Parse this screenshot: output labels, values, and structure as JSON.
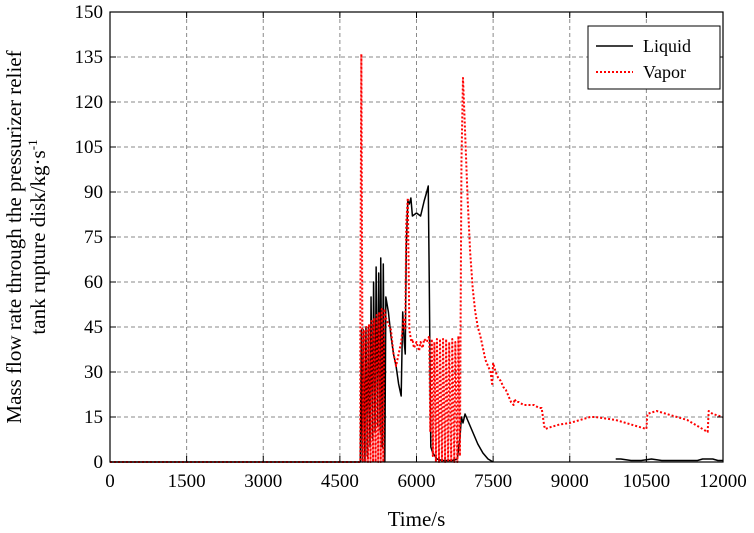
{
  "chart_data": {
    "type": "line",
    "xlabel": "Time/s",
    "ylabel_line1": "Mass flow rate through the pressurizer relief",
    "ylabel_line2_main": "tank rupture disk/kg·s",
    "ylabel_line2_sup": "-1",
    "xlim": [
      0,
      12000
    ],
    "ylim": [
      0,
      150
    ],
    "xticks": [
      0,
      1500,
      3000,
      4500,
      6000,
      7500,
      9000,
      10500,
      12000
    ],
    "yticks": [
      0,
      15,
      30,
      45,
      60,
      75,
      90,
      105,
      120,
      135,
      150
    ],
    "grid": true,
    "legend_position": "top-right",
    "colors": {
      "liquid": "#000000",
      "vapor": "#ff0000"
    },
    "series": [
      {
        "name": "Liquid",
        "style": "solid",
        "points": [
          [
            0,
            0
          ],
          [
            4900,
            0
          ],
          [
            4920,
            44
          ],
          [
            4940,
            0
          ],
          [
            4960,
            44
          ],
          [
            4990,
            0
          ],
          [
            5010,
            45
          ],
          [
            5040,
            2
          ],
          [
            5060,
            45
          ],
          [
            5090,
            5
          ],
          [
            5110,
            55
          ],
          [
            5140,
            8
          ],
          [
            5160,
            60
          ],
          [
            5190,
            10
          ],
          [
            5210,
            65
          ],
          [
            5240,
            12
          ],
          [
            5260,
            63
          ],
          [
            5290,
            10
          ],
          [
            5300,
            68
          ],
          [
            5330,
            5
          ],
          [
            5350,
            66
          ],
          [
            5380,
            0
          ],
          [
            5400,
            55
          ],
          [
            5450,
            50
          ],
          [
            5500,
            42
          ],
          [
            5550,
            36
          ],
          [
            5600,
            32
          ],
          [
            5650,
            26
          ],
          [
            5700,
            22
          ],
          [
            5730,
            50
          ],
          [
            5760,
            40
          ],
          [
            5780,
            36
          ],
          [
            5800,
            72
          ],
          [
            5830,
            87
          ],
          [
            5860,
            86
          ],
          [
            5890,
            88
          ],
          [
            5920,
            82
          ],
          [
            6000,
            83
          ],
          [
            6080,
            82
          ],
          [
            6150,
            87
          ],
          [
            6200,
            90
          ],
          [
            6230,
            92
          ],
          [
            6250,
            60
          ],
          [
            6280,
            5
          ],
          [
            6320,
            3
          ],
          [
            6400,
            1
          ],
          [
            6500,
            0.5
          ],
          [
            6700,
            0.5
          ],
          [
            6800,
            1
          ],
          [
            6850,
            8
          ],
          [
            6880,
            15
          ],
          [
            6910,
            13
          ],
          [
            6950,
            16
          ],
          [
            7000,
            14
          ],
          [
            7100,
            10
          ],
          [
            7200,
            6
          ],
          [
            7300,
            3
          ],
          [
            7400,
            1
          ],
          [
            7500,
            0
          ],
          [
            7500,
            null
          ],
          [
            9900,
            1
          ],
          [
            10000,
            1
          ],
          [
            10200,
            0.5
          ],
          [
            10400,
            0.5
          ],
          [
            10600,
            1
          ],
          [
            10800,
            0.5
          ],
          [
            11000,
            0.5
          ],
          [
            11400,
            0.5
          ],
          [
            11500,
            0.5
          ],
          [
            11600,
            1
          ],
          [
            11700,
            1
          ],
          [
            11800,
            1
          ],
          [
            11900,
            0.5
          ],
          [
            12000,
            0.5
          ]
        ]
      },
      {
        "name": "Vapor",
        "style": "dotted",
        "points": [
          [
            0,
            0
          ],
          [
            4900,
            0
          ],
          [
            4900,
            45
          ],
          [
            4920,
            136
          ],
          [
            4940,
            43
          ],
          [
            4950,
            0
          ],
          [
            4970,
            44
          ],
          [
            5000,
            0
          ],
          [
            5020,
            45
          ],
          [
            5050,
            0
          ],
          [
            5070,
            46
          ],
          [
            5100,
            0
          ],
          [
            5120,
            47
          ],
          [
            5150,
            0
          ],
          [
            5170,
            48
          ],
          [
            5200,
            0
          ],
          [
            5220,
            49
          ],
          [
            5250,
            0
          ],
          [
            5270,
            50
          ],
          [
            5300,
            0
          ],
          [
            5320,
            51
          ],
          [
            5350,
            0
          ],
          [
            5370,
            51
          ],
          [
            5400,
            48
          ],
          [
            5450,
            46
          ],
          [
            5500,
            44
          ],
          [
            5550,
            36
          ],
          [
            5600,
            32
          ],
          [
            5650,
            36
          ],
          [
            5700,
            40
          ],
          [
            5750,
            48
          ],
          [
            5780,
            44
          ],
          [
            5800,
            80
          ],
          [
            5830,
            88
          ],
          [
            5860,
            44
          ],
          [
            5880,
            42
          ],
          [
            5900,
            40
          ],
          [
            5920,
            41
          ],
          [
            5950,
            38
          ],
          [
            6000,
            40
          ],
          [
            6050,
            37
          ],
          [
            6080,
            40
          ],
          [
            6120,
            38
          ],
          [
            6150,
            41
          ],
          [
            6200,
            40
          ],
          [
            6250,
            42
          ],
          [
            6270,
            10
          ],
          [
            6300,
            41
          ],
          [
            6320,
            2
          ],
          [
            6350,
            40
          ],
          [
            6380,
            0
          ],
          [
            6400,
            41
          ],
          [
            6440,
            0
          ],
          [
            6460,
            41
          ],
          [
            6500,
            0
          ],
          [
            6520,
            41
          ],
          [
            6560,
            0
          ],
          [
            6580,
            41
          ],
          [
            6620,
            0
          ],
          [
            6640,
            40
          ],
          [
            6680,
            0
          ],
          [
            6700,
            41
          ],
          [
            6740,
            0
          ],
          [
            6760,
            40
          ],
          [
            6800,
            0
          ],
          [
            6820,
            42
          ],
          [
            6850,
            2
          ],
          [
            6880,
            100
          ],
          [
            6910,
            128
          ],
          [
            6940,
            115
          ],
          [
            7000,
            88
          ],
          [
            7050,
            70
          ],
          [
            7100,
            58
          ],
          [
            7150,
            50
          ],
          [
            7200,
            45
          ],
          [
            7250,
            42
          ],
          [
            7300,
            38
          ],
          [
            7350,
            34
          ],
          [
            7400,
            32
          ],
          [
            7450,
            30
          ],
          [
            7480,
            26
          ],
          [
            7500,
            33
          ],
          [
            7550,
            30
          ],
          [
            7600,
            28
          ],
          [
            7650,
            27
          ],
          [
            7700,
            25
          ],
          [
            7750,
            24
          ],
          [
            7800,
            22
          ],
          [
            7850,
            20
          ],
          [
            7900,
            19
          ],
          [
            7920,
            21
          ],
          [
            7950,
            20
          ],
          [
            8000,
            20
          ],
          [
            8100,
            19
          ],
          [
            8200,
            19
          ],
          [
            8300,
            19
          ],
          [
            8400,
            18
          ],
          [
            8450,
            18
          ],
          [
            8500,
            12
          ],
          [
            8520,
            11
          ],
          [
            8600,
            11.5
          ],
          [
            8800,
            12.5
          ],
          [
            9000,
            13
          ],
          [
            9200,
            14
          ],
          [
            9400,
            15
          ],
          [
            9500,
            15
          ],
          [
            9700,
            14.5
          ],
          [
            9900,
            14
          ],
          [
            10100,
            13
          ],
          [
            10300,
            12
          ],
          [
            10500,
            11
          ],
          [
            10520,
            16
          ],
          [
            10600,
            16.5
          ],
          [
            10700,
            17
          ],
          [
            10900,
            16
          ],
          [
            11100,
            15
          ],
          [
            11300,
            14
          ],
          [
            11500,
            12
          ],
          [
            11700,
            10
          ],
          [
            11720,
            17
          ],
          [
            11800,
            16
          ],
          [
            12000,
            15
          ]
        ]
      }
    ]
  }
}
